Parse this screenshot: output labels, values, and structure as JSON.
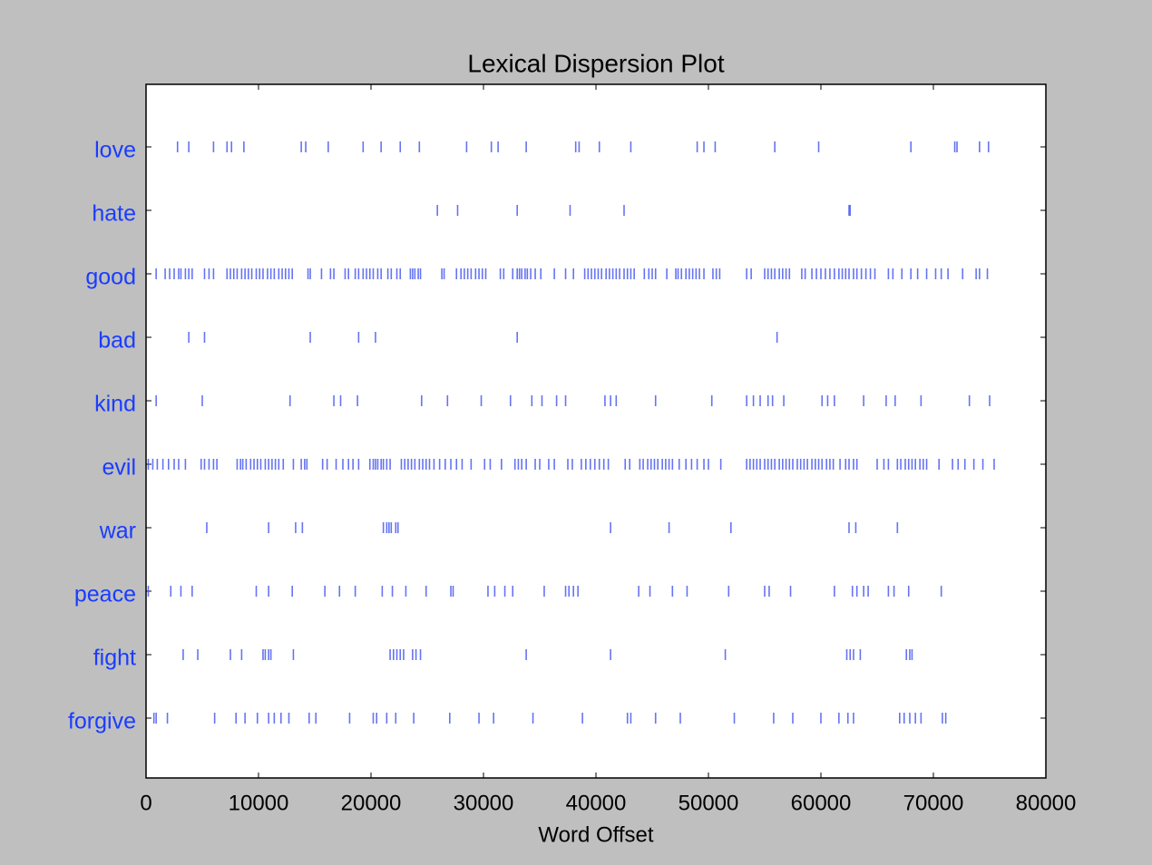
{
  "chart_data": {
    "type": "dispersion",
    "title": "Lexical Dispersion Plot",
    "x_label": "Word Offset",
    "xlim": [
      0,
      80000
    ],
    "xticks": [
      0,
      10000,
      20000,
      30000,
      40000,
      50000,
      60000,
      70000,
      80000
    ],
    "color": "#4a5cf0",
    "label_color": "#1a3cff",
    "series": [
      {
        "name": "love",
        "values": [
          2800,
          3800,
          6000,
          7200,
          7600,
          8700,
          13800,
          14200,
          16200,
          19300,
          20900,
          22600,
          24300,
          28500,
          30700,
          31300,
          33800,
          38200,
          38500,
          40300,
          43100,
          49000,
          49600,
          50600,
          55900,
          59800,
          68000,
          71900,
          72100,
          74100,
          74900
        ]
      },
      {
        "name": "hate",
        "values": [
          25900,
          27700,
          33000,
          37700,
          42500,
          62500,
          62600
        ]
      },
      {
        "name": "good",
        "values": [
          900,
          1700,
          2100,
          2500,
          2900,
          3100,
          3500,
          3800,
          4100,
          5200,
          5600,
          6000,
          7200,
          7500,
          7800,
          8100,
          8500,
          8800,
          9100,
          9400,
          9800,
          10100,
          10400,
          10800,
          11100,
          11400,
          11800,
          12100,
          12400,
          12700,
          13000,
          14400,
          14600,
          15600,
          16400,
          16700,
          17700,
          18000,
          18600,
          18900,
          19300,
          19600,
          19900,
          20200,
          20600,
          20900,
          21500,
          21800,
          22300,
          22600,
          23500,
          23700,
          23900,
          24200,
          24400,
          26300,
          26500,
          27600,
          28000,
          28300,
          28600,
          28900,
          29300,
          29600,
          29900,
          30200,
          31500,
          31800,
          32600,
          33000,
          33200,
          33400,
          33700,
          33900,
          34200,
          34600,
          35100,
          36300,
          37300,
          38000,
          39000,
          39300,
          39600,
          39900,
          40200,
          40500,
          40900,
          41200,
          41500,
          41800,
          42100,
          42500,
          42800,
          43100,
          43400,
          44300,
          44700,
          45000,
          45300,
          46300,
          47100,
          47300,
          47600,
          48000,
          48300,
          48600,
          48900,
          49200,
          49600,
          50400,
          50700,
          51000,
          53400,
          53800,
          55000,
          55300,
          55600,
          55900,
          56300,
          56600,
          56900,
          57200,
          58300,
          58600,
          59200,
          59600,
          60000,
          60400,
          60800,
          61200,
          61600,
          61900,
          62200,
          62500,
          62900,
          63200,
          63600,
          64000,
          64400,
          64800,
          66000,
          66400,
          67200,
          68000,
          68600,
          69400,
          70200,
          70700,
          71300,
          72600,
          73800,
          74100,
          74800
        ]
      },
      {
        "name": "bad",
        "values": [
          3800,
          5200,
          14600,
          18900,
          20400,
          33000,
          56100
        ]
      },
      {
        "name": "kind",
        "values": [
          900,
          5000,
          12800,
          16700,
          17300,
          18800,
          24500,
          26800,
          29800,
          32400,
          34300,
          35200,
          36500,
          37300,
          40800,
          41300,
          41800,
          45300,
          50300,
          53400,
          54000,
          54600,
          55300,
          55700,
          56700,
          60100,
          60600,
          61200,
          63800,
          65800,
          66600,
          68900,
          73200,
          75000
        ]
      },
      {
        "name": "evil",
        "values": [
          200,
          600,
          1000,
          1500,
          2000,
          2500,
          2900,
          3500,
          4900,
          5200,
          5600,
          6000,
          6300,
          8100,
          8400,
          8600,
          8900,
          9300,
          9600,
          9900,
          10200,
          10600,
          10900,
          11200,
          11500,
          11800,
          12200,
          13100,
          13800,
          14100,
          14300,
          15700,
          16100,
          16900,
          17500,
          18000,
          18400,
          18900,
          19900,
          20200,
          20400,
          20600,
          20900,
          21100,
          21400,
          21700,
          22700,
          23000,
          23300,
          23600,
          23900,
          24300,
          24600,
          24900,
          25200,
          25600,
          26100,
          26600,
          27100,
          27600,
          28100,
          28900,
          30100,
          30600,
          31600,
          32800,
          33100,
          33400,
          33800,
          34600,
          35000,
          35800,
          36300,
          37500,
          37900,
          38700,
          39100,
          39500,
          39900,
          40300,
          40700,
          41100,
          42600,
          43000,
          43900,
          44200,
          44600,
          44900,
          45200,
          45500,
          45900,
          46200,
          46500,
          46800,
          47400,
          48000,
          48500,
          49000,
          49600,
          50000,
          51100,
          53400,
          53700,
          54000,
          54300,
          54600,
          55000,
          55300,
          55600,
          55900,
          56300,
          56600,
          56900,
          57200,
          57500,
          57900,
          58200,
          58500,
          58800,
          59200,
          59500,
          59800,
          60100,
          60500,
          60800,
          61100,
          61700,
          62200,
          62500,
          62900,
          63200,
          65000,
          65600,
          66000,
          66800,
          67100,
          67500,
          67800,
          68100,
          68400,
          68800,
          69100,
          69400,
          70500,
          71700,
          72200,
          72800,
          73600,
          74400,
          75400
        ]
      },
      {
        "name": "war",
        "values": [
          5400,
          10900,
          13300,
          13900,
          21100,
          21400,
          21600,
          21800,
          22200,
          22400,
          41300,
          46500,
          52000,
          62500,
          63100,
          66800
        ]
      },
      {
        "name": "peace",
        "values": [
          200,
          2200,
          3100,
          4100,
          9800,
          10900,
          13000,
          15900,
          17200,
          18600,
          21000,
          21900,
          23100,
          24900,
          27100,
          27300,
          30400,
          31000,
          31900,
          32600,
          35400,
          37300,
          37600,
          38000,
          38400,
          43800,
          44800,
          46800,
          48100,
          51800,
          55000,
          55400,
          57300,
          61200,
          62800,
          63200,
          63800,
          64200,
          66000,
          66500,
          67800,
          70700
        ]
      },
      {
        "name": "fight",
        "values": [
          3300,
          4600,
          7500,
          8500,
          10400,
          10600,
          10900,
          11100,
          13100,
          21700,
          22000,
          22300,
          22600,
          22900,
          23700,
          24000,
          24400,
          33800,
          41300,
          51500,
          62300,
          62600,
          62900,
          63500,
          67600,
          67900,
          68100
        ]
      },
      {
        "name": "forgive",
        "values": [
          700,
          900,
          1900,
          6100,
          8000,
          8800,
          9900,
          10900,
          11400,
          12000,
          12700,
          14500,
          15100,
          18100,
          20200,
          20500,
          21400,
          22200,
          23800,
          27000,
          29600,
          30900,
          34400,
          38800,
          42800,
          43100,
          45300,
          47500,
          52300,
          55800,
          57500,
          60000,
          61600,
          62400,
          62900,
          67000,
          67400,
          67900,
          68400,
          68900,
          70800,
          71100
        ]
      }
    ]
  }
}
